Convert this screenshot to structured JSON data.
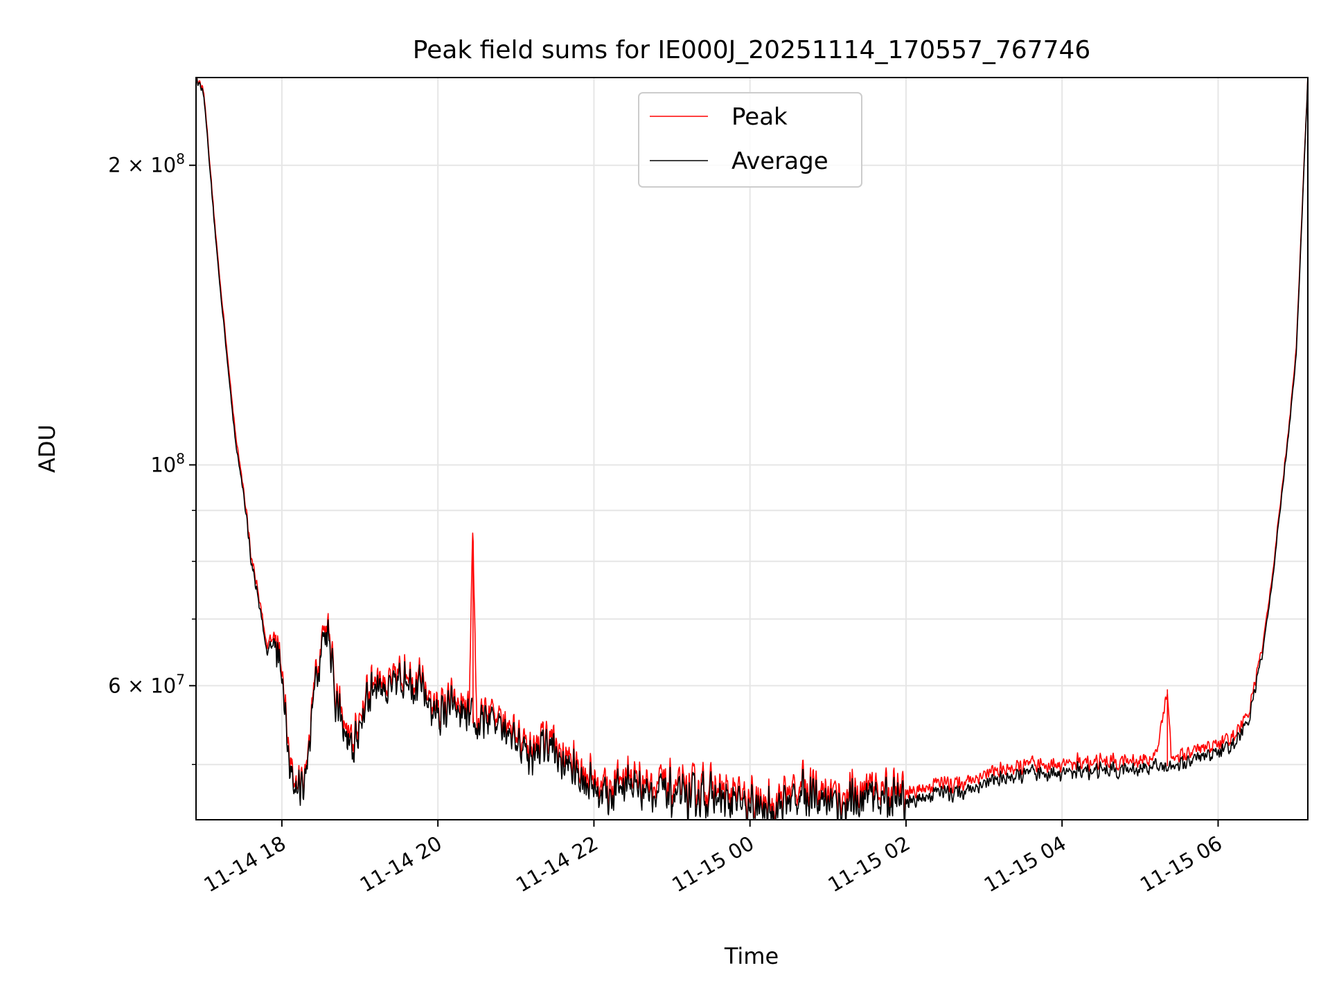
{
  "chart_data": {
    "type": "line",
    "title": "Peak field sums for IE000J_20251114_170557_767746",
    "xlabel": "Time",
    "ylabel": "ADU",
    "yscale": "log",
    "xlim_hours": [
      16.9,
      31.15
    ],
    "ylim": [
      44000000,
      245000000
    ],
    "grid": true,
    "legend_position": "upper center",
    "x_ticks": [
      {
        "hour": 18,
        "label": "11-14 18"
      },
      {
        "hour": 20,
        "label": "11-14 20"
      },
      {
        "hour": 22,
        "label": "11-14 22"
      },
      {
        "hour": 24,
        "label": "11-15 00"
      },
      {
        "hour": 26,
        "label": "11-15 02"
      },
      {
        "hour": 28,
        "label": "11-15 04"
      },
      {
        "hour": 30,
        "label": "11-15 06"
      }
    ],
    "y_major_ticks": [
      {
        "value": 60000000,
        "label_base": "6 × 10",
        "label_exp": "7"
      },
      {
        "value": 100000000,
        "label_base": "10",
        "label_exp": "8"
      },
      {
        "value": 200000000,
        "label_base": "2 × 10",
        "label_exp": "8"
      }
    ],
    "y_minor_gridlines": [
      50000000,
      70000000,
      80000000,
      90000000
    ],
    "series": [
      {
        "name": "Peak",
        "color": "#ff0000",
        "hours": [
          16.9,
          17.0,
          17.1,
          17.2,
          17.3,
          17.4,
          17.5,
          17.6,
          17.7,
          17.8,
          17.9,
          18.0,
          18.1,
          18.2,
          18.3,
          18.4,
          18.5,
          18.6,
          18.7,
          18.8,
          18.9,
          19.0,
          19.2,
          19.4,
          19.6,
          19.8,
          20.0,
          20.2,
          20.4,
          20.45,
          20.5,
          20.6,
          20.8,
          21.0,
          21.2,
          21.4,
          21.6,
          21.8,
          22.0,
          22.2,
          22.4,
          22.6,
          22.8,
          23.0,
          23.2,
          23.4,
          23.6,
          23.8,
          24.0,
          24.2,
          24.4,
          24.6,
          24.8,
          25.0,
          25.2,
          25.4,
          25.6,
          25.8,
          26.0,
          26.2,
          26.4,
          26.6,
          26.8,
          27.0,
          27.2,
          27.4,
          27.6,
          27.8,
          28.0,
          28.2,
          28.4,
          28.6,
          28.8,
          29.0,
          29.2,
          29.35,
          29.4,
          29.6,
          29.8,
          30.0,
          30.2,
          30.4,
          30.5,
          30.6,
          30.7,
          30.8,
          30.9,
          31.0,
          31.1,
          31.15
        ],
        "values": [
          245000000,
          238000000,
          190000000,
          155000000,
          130000000,
          108000000,
          96000000,
          82000000,
          74000000,
          66000000,
          68000000,
          62000000,
          50000000,
          47500000,
          49000000,
          59000000,
          67000000,
          70000000,
          58000000,
          55000000,
          52000000,
          56000000,
          62000000,
          60000000,
          63000000,
          60000000,
          57000000,
          58000000,
          56000000,
          84000000,
          55000000,
          56000000,
          57000000,
          54000000,
          52000000,
          53500000,
          51000000,
          50000000,
          48500000,
          47500000,
          49000000,
          48500000,
          48000000,
          47500000,
          47000000,
          47800000,
          47000000,
          46500000,
          46000000,
          45500000,
          46500000,
          47500000,
          48000000,
          47000000,
          46500000,
          47000000,
          47500000,
          47000000,
          46800000,
          47200000,
          48000000,
          47800000,
          48200000,
          48800000,
          49300000,
          49600000,
          49900000,
          50000000,
          50100000,
          50200000,
          50300000,
          50400000,
          50400000,
          50600000,
          50700000,
          59500000,
          51000000,
          51200000,
          51800000,
          52500000,
          53500000,
          56500000,
          62000000,
          68000000,
          78000000,
          92000000,
          108000000,
          130000000,
          200000000,
          245000000
        ]
      },
      {
        "name": "Average",
        "color": "#000000",
        "hours": [
          16.9,
          17.0,
          17.1,
          17.2,
          17.3,
          17.4,
          17.5,
          17.6,
          17.7,
          17.8,
          17.9,
          18.0,
          18.1,
          18.2,
          18.3,
          18.4,
          18.5,
          18.6,
          18.7,
          18.8,
          18.9,
          19.0,
          19.2,
          19.4,
          19.6,
          19.8,
          20.0,
          20.2,
          20.4,
          20.45,
          20.5,
          20.6,
          20.8,
          21.0,
          21.2,
          21.4,
          21.6,
          21.8,
          22.0,
          22.2,
          22.4,
          22.6,
          22.8,
          23.0,
          23.2,
          23.4,
          23.6,
          23.8,
          24.0,
          24.2,
          24.4,
          24.6,
          24.8,
          25.0,
          25.2,
          25.4,
          25.6,
          25.8,
          26.0,
          26.2,
          26.4,
          26.6,
          26.8,
          27.0,
          27.2,
          27.4,
          27.6,
          27.8,
          28.0,
          28.2,
          28.4,
          28.6,
          28.8,
          29.0,
          29.2,
          29.35,
          29.4,
          29.6,
          29.8,
          30.0,
          30.2,
          30.4,
          30.5,
          30.6,
          30.7,
          30.8,
          30.9,
          31.0,
          31.1,
          31.15
        ],
        "values": [
          245000000,
          236000000,
          188000000,
          153000000,
          128000000,
          106000000,
          95000000,
          81000000,
          73000000,
          65000000,
          67000000,
          61000000,
          49000000,
          47000000,
          48500000,
          58000000,
          66000000,
          69000000,
          57000000,
          54000000,
          51000000,
          55000000,
          61000000,
          59000000,
          62000000,
          59000000,
          56000000,
          57000000,
          55000000,
          55000000,
          54500000,
          55000000,
          56000000,
          53000000,
          51000000,
          52500000,
          50000000,
          49000000,
          47500000,
          46500000,
          48000000,
          47500000,
          47000000,
          46500000,
          46000000,
          46800000,
          46000000,
          45500000,
          45000000,
          44800000,
          45500000,
          46500000,
          47000000,
          46000000,
          45500000,
          46000000,
          46500000,
          46000000,
          45800000,
          46200000,
          47000000,
          46800000,
          47200000,
          47800000,
          48300000,
          48600000,
          48900000,
          49000000,
          49100000,
          49200000,
          49300000,
          49400000,
          49400000,
          49600000,
          49700000,
          49800000,
          50000000,
          50200000,
          50800000,
          51500000,
          52500000,
          55500000,
          61000000,
          67000000,
          77000000,
          91000000,
          107000000,
          128000000,
          198000000,
          245000000
        ]
      }
    ]
  }
}
